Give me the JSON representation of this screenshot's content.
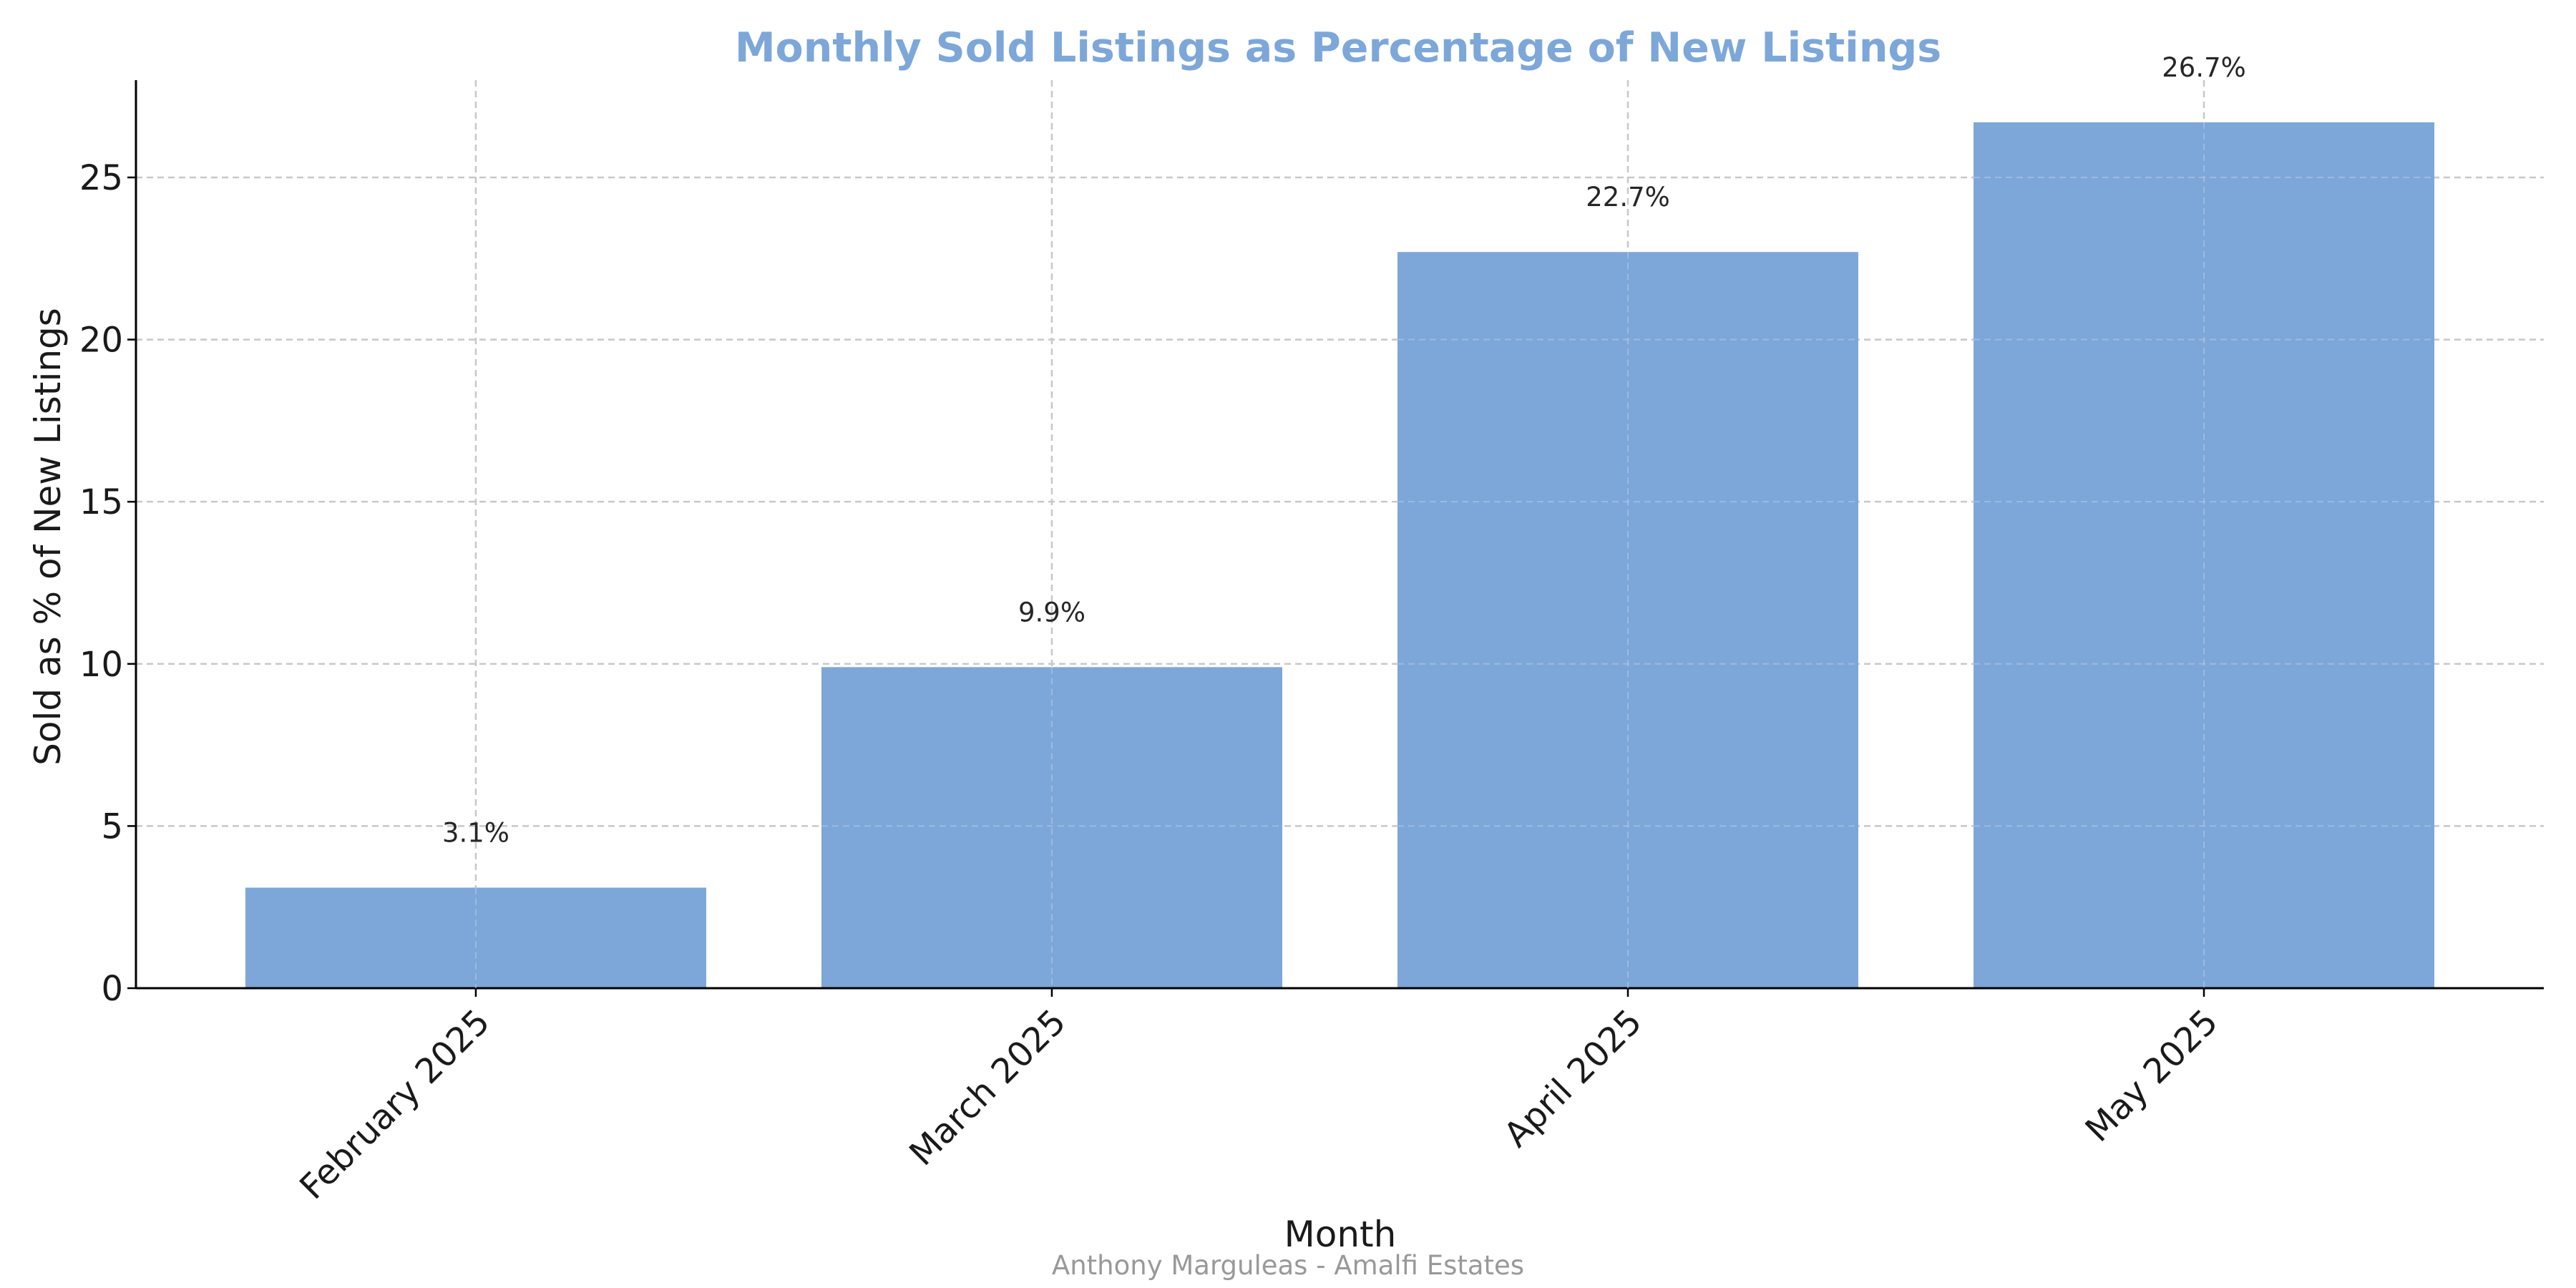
{
  "chart_data": {
    "type": "bar",
    "title": "Monthly Sold Listings as Percentage of New Listings",
    "xlabel": "Month",
    "ylabel": "Sold as % of New Listings",
    "categories": [
      "February 2025",
      "March 2025",
      "April 2025",
      "May 2025"
    ],
    "values": [
      3.1,
      9.9,
      22.7,
      26.7
    ],
    "value_labels": [
      "3.1%",
      "9.9%",
      "22.7%",
      "26.7%"
    ],
    "ylim": [
      0,
      28
    ],
    "yticks": [
      0,
      5,
      10,
      15,
      20,
      25
    ],
    "ytick_labels": [
      "0",
      "5",
      "10",
      "15",
      "20",
      "25"
    ],
    "grid": true,
    "legend": "none",
    "footer": "Anthony Marguleas - Amalfi Estates"
  },
  "colors": {
    "bar": "#7da7d9",
    "title": "#7da7d9",
    "grid": "#c8c8c8",
    "axis": "#000000"
  }
}
